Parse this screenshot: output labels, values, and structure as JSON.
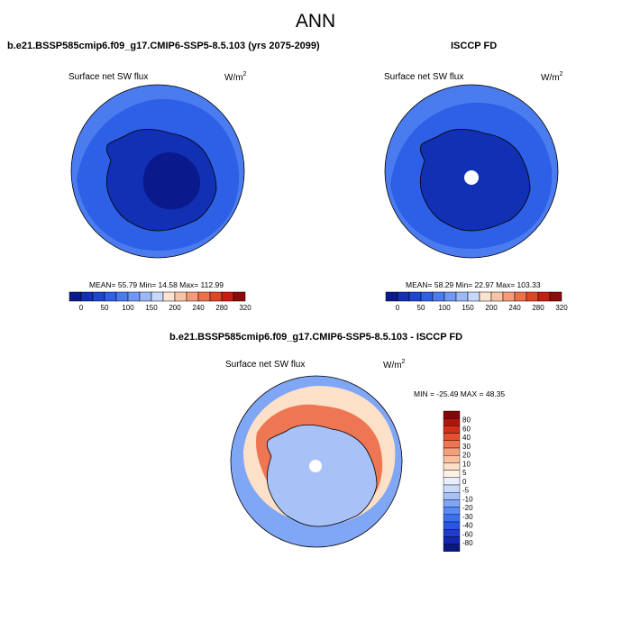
{
  "header": {
    "season": "ANN"
  },
  "panels": {
    "test": {
      "title": "b.e21.BSSP585cmip6.f09_g17.CMIP6-SSP5-8.5.103 (yrs 2075-2099)",
      "variable": "Surface net SW flux",
      "units_base": "W/m",
      "units_exp": "2",
      "stats": "MEAN=  55.79  Min=  14.58  Max= 112.99"
    },
    "obs": {
      "title": "ISCCP FD",
      "variable": "Surface net SW flux",
      "units_base": "W/m",
      "units_exp": "2",
      "stats": "MEAN=  58.29  Min=  22.97  Max= 103.33"
    },
    "diff": {
      "title": "b.e21.BSSP585cmip6.f09_g17.CMIP6-SSP5-8.5.103 - ISCCP FD",
      "variable": "Surface net SW flux",
      "units_base": "W/m",
      "units_exp": "2",
      "stats": "MIN = -25.49 MAX =  48.35"
    }
  },
  "colors": {
    "abs_levels": [
      "#0a1a8c",
      "#1230b4",
      "#1d46d2",
      "#2d60e6",
      "#4a7cf0",
      "#6f98f4",
      "#9cb8f6",
      "#c8d8fb",
      "#fbe3d2",
      "#f8c4a6",
      "#f49c77",
      "#ee704b",
      "#e24526",
      "#c81e12",
      "#8c0a0a"
    ],
    "diff_levels": [
      "#0b1780",
      "#1228b0",
      "#1e3cd0",
      "#2a56e4",
      "#3a6ff0",
      "#5a8af4",
      "#80a6f6",
      "#a8c2f8",
      "#cadcfa",
      "#e8eefc",
      "#fff1e6",
      "#fde0c8",
      "#f9c1a0",
      "#f59e7a",
      "#ef7652",
      "#e5502e",
      "#d22e1a",
      "#b0150c",
      "#800808"
    ],
    "ocean_test": "#4a7cf0",
    "ocean_test_inner": "#2d60e6",
    "antarctica_test": "#1230b4",
    "ocean_obs": "#4a7cf0",
    "ocean_obs_inner": "#2d60e6",
    "antarctica_obs": "#1230b4",
    "diff_ocean": "#80a6f6",
    "diff_ring": "#fde0c8",
    "diff_coast": "#ef7652",
    "diff_land": "#a8c2f8",
    "missing": "#ffffff"
  },
  "chart_data": [
    {
      "type": "heatmap",
      "projection": "south-polar-stereographic",
      "title": "b.e21.BSSP585cmip6.f09_g17.CMIP6-SSP5-8.5.103 (yrs 2075-2099)",
      "variable": "Surface net SW flux",
      "units": "W/m2",
      "stats": {
        "mean": 55.79,
        "min": 14.58,
        "max": 112.99
      },
      "colorbar": {
        "orientation": "horizontal",
        "levels": [
          0,
          25,
          50,
          75,
          100,
          125,
          150,
          175,
          200,
          220,
          240,
          260,
          280,
          300,
          320
        ],
        "tick_labels": [
          "0",
          "50",
          "100",
          "150",
          "200",
          "240",
          "280",
          "320"
        ]
      }
    },
    {
      "type": "heatmap",
      "projection": "south-polar-stereographic",
      "title": "ISCCP FD",
      "variable": "Surface net SW flux",
      "units": "W/m2",
      "stats": {
        "mean": 58.29,
        "min": 22.97,
        "max": 103.33
      },
      "colorbar": {
        "orientation": "horizontal",
        "levels": [
          0,
          25,
          50,
          75,
          100,
          125,
          150,
          175,
          200,
          220,
          240,
          260,
          280,
          300,
          320
        ],
        "tick_labels": [
          "0",
          "50",
          "100",
          "150",
          "200",
          "240",
          "280",
          "320"
        ]
      }
    },
    {
      "type": "heatmap",
      "projection": "south-polar-stereographic",
      "title": "b.e21.BSSP585cmip6.f09_g17.CMIP6-SSP5-8.5.103 - ISCCP FD",
      "variable": "Surface net SW flux",
      "units": "W/m2",
      "stats": {
        "min": -25.49,
        "max": 48.35
      },
      "colorbar": {
        "orientation": "vertical",
        "tick_labels": [
          "80",
          "60",
          "40",
          "30",
          "20",
          "10",
          "5",
          "0",
          "-5",
          "-10",
          "-20",
          "-30",
          "-40",
          "-60",
          "-80"
        ]
      }
    }
  ]
}
